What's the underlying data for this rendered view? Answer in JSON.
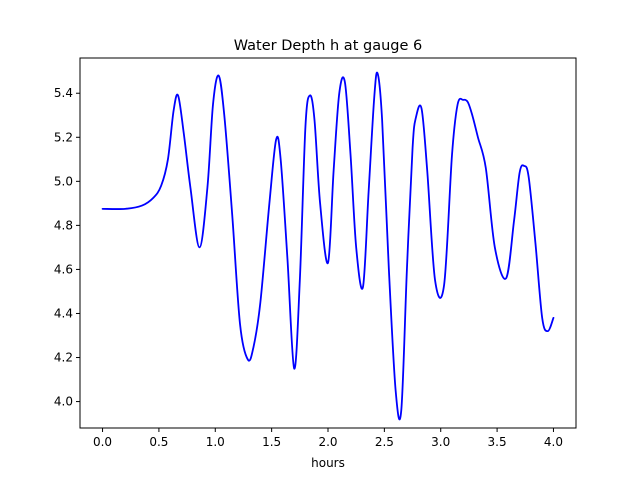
{
  "chart_data": {
    "type": "line",
    "title": "Water Depth h at gauge 6",
    "xlabel": "hours",
    "ylabel": "",
    "xlim": [
      -0.2,
      4.2
    ],
    "ylim": [
      3.88,
      5.56
    ],
    "grid": false,
    "colors": {
      "line": "#0000ff",
      "axes": "#000000",
      "background": "#ffffff"
    },
    "x_ticks": [
      0.0,
      0.5,
      1.0,
      1.5,
      2.0,
      2.5,
      3.0,
      3.5,
      4.0
    ],
    "x_tick_labels": [
      "0.0",
      "0.5",
      "1.0",
      "1.5",
      "2.0",
      "2.5",
      "3.0",
      "3.5",
      "4.0"
    ],
    "y_ticks": [
      4.0,
      4.2,
      4.4,
      4.6,
      4.8,
      5.0,
      5.2,
      5.4
    ],
    "y_tick_labels": [
      "4.0",
      "4.2",
      "4.4",
      "4.6",
      "4.8",
      "5.0",
      "5.2",
      "5.4"
    ],
    "series": [
      {
        "x": [
          0.0,
          0.2,
          0.35,
          0.45,
          0.52,
          0.58,
          0.63,
          0.67,
          0.72,
          0.78,
          0.86,
          0.93,
          0.98,
          1.03,
          1.08,
          1.15,
          1.22,
          1.29,
          1.34,
          1.4,
          1.48,
          1.54,
          1.58,
          1.64,
          1.7,
          1.75,
          1.8,
          1.84,
          1.88,
          1.93,
          2.0,
          2.05,
          2.1,
          2.15,
          2.2,
          2.25,
          2.31,
          2.36,
          2.41,
          2.44,
          2.48,
          2.54,
          2.6,
          2.65,
          2.7,
          2.75,
          2.78,
          2.83,
          2.88,
          2.95,
          3.03,
          3.1,
          3.15,
          3.2,
          3.24,
          3.28,
          3.33,
          3.4,
          3.48,
          3.58,
          3.65,
          3.7,
          3.74,
          3.78,
          3.84,
          3.9,
          3.95,
          4.0
        ],
        "y": [
          4.875,
          4.875,
          4.89,
          4.925,
          4.98,
          5.1,
          5.32,
          5.39,
          5.22,
          4.97,
          4.7,
          4.97,
          5.35,
          5.48,
          5.3,
          4.85,
          4.35,
          4.19,
          4.25,
          4.45,
          4.9,
          5.19,
          5.1,
          4.65,
          4.15,
          4.55,
          5.25,
          5.39,
          5.28,
          4.9,
          4.63,
          5.05,
          5.4,
          5.45,
          5.12,
          4.7,
          4.52,
          4.95,
          5.38,
          5.49,
          5.28,
          4.6,
          4.05,
          3.96,
          4.6,
          5.15,
          5.29,
          5.33,
          5.05,
          4.55,
          4.53,
          5.12,
          5.35,
          5.37,
          5.36,
          5.3,
          5.2,
          5.06,
          4.7,
          4.56,
          4.82,
          5.04,
          5.07,
          5.02,
          4.72,
          4.38,
          4.32,
          4.38
        ]
      }
    ]
  }
}
